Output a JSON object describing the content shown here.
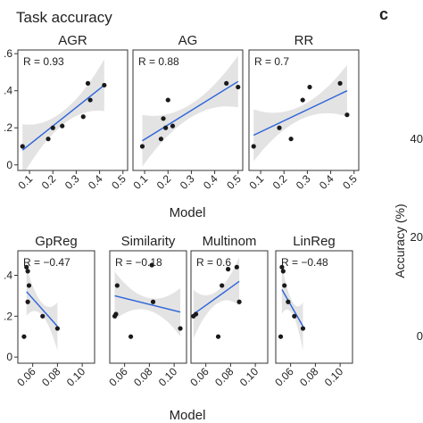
{
  "figure": {
    "title": "Task accuracy",
    "panel_letter": "c",
    "right_axis_label": "Accuracy (%)",
    "right_axis_ticks": [
      "40",
      "20",
      "0"
    ]
  },
  "colors": {
    "point": "#1a1a1a",
    "line": "#2b63d9",
    "band": "#e3e3e3",
    "frame": "#333333"
  },
  "chart_data": [
    {
      "type": "scatter",
      "title": "AGR",
      "annotation": "R = 0.93",
      "xlabel": "Model",
      "xlim": [
        0.05,
        0.52
      ],
      "ylim": [
        -0.03,
        0.62
      ],
      "xticks": [
        "0.1",
        "0.2",
        "0.3",
        "0.4",
        "0.5"
      ],
      "yticks": [
        "0",
        ".2",
        ".4",
        ".6"
      ],
      "points": [
        [
          0.07,
          0.1
        ],
        [
          0.18,
          0.14
        ],
        [
          0.2,
          0.2
        ],
        [
          0.24,
          0.21
        ],
        [
          0.33,
          0.26
        ],
        [
          0.35,
          0.44
        ],
        [
          0.36,
          0.35
        ],
        [
          0.42,
          0.43
        ]
      ],
      "fit": [
        [
          0.07,
          0.08
        ],
        [
          0.42,
          0.43
        ]
      ]
    },
    {
      "type": "scatter",
      "title": "AG",
      "annotation": "R = 0.88",
      "xlabel": "Model",
      "xlim": [
        0.05,
        0.52
      ],
      "ylim": [
        -0.03,
        0.62
      ],
      "xticks": [
        "0.1",
        "0.2",
        "0.3",
        "0.4",
        "0.5"
      ],
      "points": [
        [
          0.09,
          0.1
        ],
        [
          0.17,
          0.14
        ],
        [
          0.18,
          0.25
        ],
        [
          0.19,
          0.2
        ],
        [
          0.2,
          0.35
        ],
        [
          0.22,
          0.21
        ],
        [
          0.45,
          0.44
        ],
        [
          0.5,
          0.42
        ]
      ],
      "fit": [
        [
          0.09,
          0.13
        ],
        [
          0.5,
          0.45
        ]
      ]
    },
    {
      "type": "scatter",
      "title": "RR",
      "annotation": "R = 0.7",
      "xlabel": "Model",
      "xlim": [
        0.05,
        0.52
      ],
      "ylim": [
        -0.03,
        0.62
      ],
      "xticks": [
        "0.1",
        "0.2",
        "0.3",
        "0.4",
        "0.5"
      ],
      "points": [
        [
          0.07,
          0.1
        ],
        [
          0.18,
          0.2
        ],
        [
          0.23,
          0.14
        ],
        [
          0.28,
          0.35
        ],
        [
          0.31,
          0.42
        ],
        [
          0.44,
          0.44
        ],
        [
          0.47,
          0.27
        ]
      ],
      "fit": [
        [
          0.07,
          0.16
        ],
        [
          0.47,
          0.4
        ]
      ]
    },
    {
      "type": "scatter",
      "title": "GpReg",
      "annotation": "R = −0.47",
      "xlabel": "Model",
      "xlim": [
        0.048,
        0.11
      ],
      "ylim": [
        -0.03,
        0.52
      ],
      "xticks": [
        "0.06",
        "0.08",
        "0.10"
      ],
      "yticks": [
        "0",
        ".2",
        ".4"
      ],
      "points": [
        [
          0.053,
          0.1
        ],
        [
          0.055,
          0.44
        ],
        [
          0.056,
          0.42
        ],
        [
          0.057,
          0.35
        ],
        [
          0.056,
          0.27
        ],
        [
          0.068,
          0.2
        ],
        [
          0.08,
          0.14
        ]
      ],
      "fit": [
        [
          0.055,
          0.32
        ],
        [
          0.08,
          0.15
        ]
      ]
    },
    {
      "type": "scatter",
      "title": "Similarity",
      "annotation": "R = −0.18",
      "xlabel": "Model",
      "xlim": [
        0.048,
        0.11
      ],
      "ylim": [
        -0.03,
        0.52
      ],
      "xticks": [
        "0.06",
        "0.08",
        "0.10"
      ],
      "points": [
        [
          0.052,
          0.2
        ],
        [
          0.053,
          0.21
        ],
        [
          0.054,
          0.35
        ],
        [
          0.065,
          0.1
        ],
        [
          0.082,
          0.45
        ],
        [
          0.083,
          0.27
        ],
        [
          0.105,
          0.14
        ]
      ],
      "fit": [
        [
          0.052,
          0.3
        ],
        [
          0.105,
          0.22
        ]
      ]
    },
    {
      "type": "scatter",
      "title": "Multinom",
      "annotation": "R = 0.6",
      "xlabel": "Model",
      "xlim": [
        0.048,
        0.11
      ],
      "ylim": [
        -0.03,
        0.52
      ],
      "xticks": [
        "0.06",
        "0.08",
        "0.10"
      ],
      "points": [
        [
          0.05,
          0.2
        ],
        [
          0.052,
          0.21
        ],
        [
          0.07,
          0.1
        ],
        [
          0.073,
          0.35
        ],
        [
          0.078,
          0.43
        ],
        [
          0.085,
          0.44
        ],
        [
          0.087,
          0.27
        ]
      ],
      "fit": [
        [
          0.05,
          0.21
        ],
        [
          0.087,
          0.37
        ]
      ]
    },
    {
      "type": "scatter",
      "title": "LinReg",
      "annotation": "R = −0.48",
      "xlabel": "Model",
      "xlim": [
        0.048,
        0.11
      ],
      "ylim": [
        -0.03,
        0.52
      ],
      "xticks": [
        "0.06",
        "0.08",
        "0.10"
      ],
      "points": [
        [
          0.052,
          0.1
        ],
        [
          0.053,
          0.44
        ],
        [
          0.054,
          0.42
        ],
        [
          0.055,
          0.35
        ],
        [
          0.058,
          0.27
        ],
        [
          0.063,
          0.2
        ],
        [
          0.07,
          0.14
        ]
      ],
      "fit": [
        [
          0.053,
          0.33
        ],
        [
          0.07,
          0.15
        ]
      ]
    }
  ],
  "x_axis_labels": {
    "top_row": "Model",
    "bottom_row": "Model"
  }
}
